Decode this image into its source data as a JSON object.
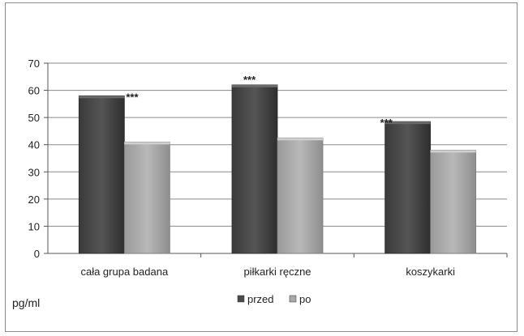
{
  "chart_data": {
    "type": "bar",
    "categories": [
      "cała grupa badana",
      "piłkarki ręczne",
      "koszykarki"
    ],
    "series": [
      {
        "name": "przed",
        "values": [
          58,
          62,
          48.5
        ],
        "color": "#4a4a4a"
      },
      {
        "name": "po",
        "values": [
          41,
          42.5,
          38
        ],
        "color": "#a9a9a9"
      }
    ],
    "ylim": [
      0,
      70
    ],
    "yticks": [
      0,
      10,
      20,
      30,
      40,
      50,
      60,
      70
    ],
    "ylabel": "pg/ml",
    "xlabel": "",
    "title": "",
    "grid": true,
    "legend_position": "bottom-center",
    "annotations": [
      "***",
      "***",
      "***"
    ]
  }
}
